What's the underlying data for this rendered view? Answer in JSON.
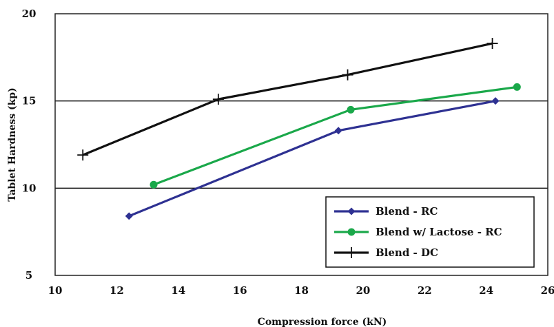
{
  "chart_data": {
    "type": "line",
    "title": "",
    "xlabel": "Compression force (kN)",
    "ylabel": "Tablet Hardness (kp)",
    "xlim": [
      10,
      26
    ],
    "ylim": [
      5,
      20
    ],
    "xticks": [
      "10",
      "12",
      "14",
      "16",
      "18",
      "20",
      "22",
      "24",
      "26"
    ],
    "yticks": [
      "5",
      "10",
      "15",
      "20"
    ],
    "grid": "horizontal",
    "legend_position": "bottom-right",
    "series": [
      {
        "name": "Blend - RC",
        "color": "#2e3192",
        "marker": "diamond",
        "x": [
          12.4,
          19.2,
          24.3
        ],
        "y": [
          8.4,
          13.3,
          15.0
        ]
      },
      {
        "name": "Blend w/ Lactose - RC",
        "color": "#1aa84a",
        "marker": "circle",
        "x": [
          13.2,
          19.6,
          25.0
        ],
        "y": [
          10.2,
          14.5,
          15.8
        ]
      },
      {
        "name": "Blend - DC",
        "color": "#111111",
        "marker": "plus",
        "x": [
          10.9,
          15.3,
          19.5,
          24.2
        ],
        "y": [
          11.9,
          15.1,
          16.5,
          18.3
        ]
      }
    ]
  }
}
